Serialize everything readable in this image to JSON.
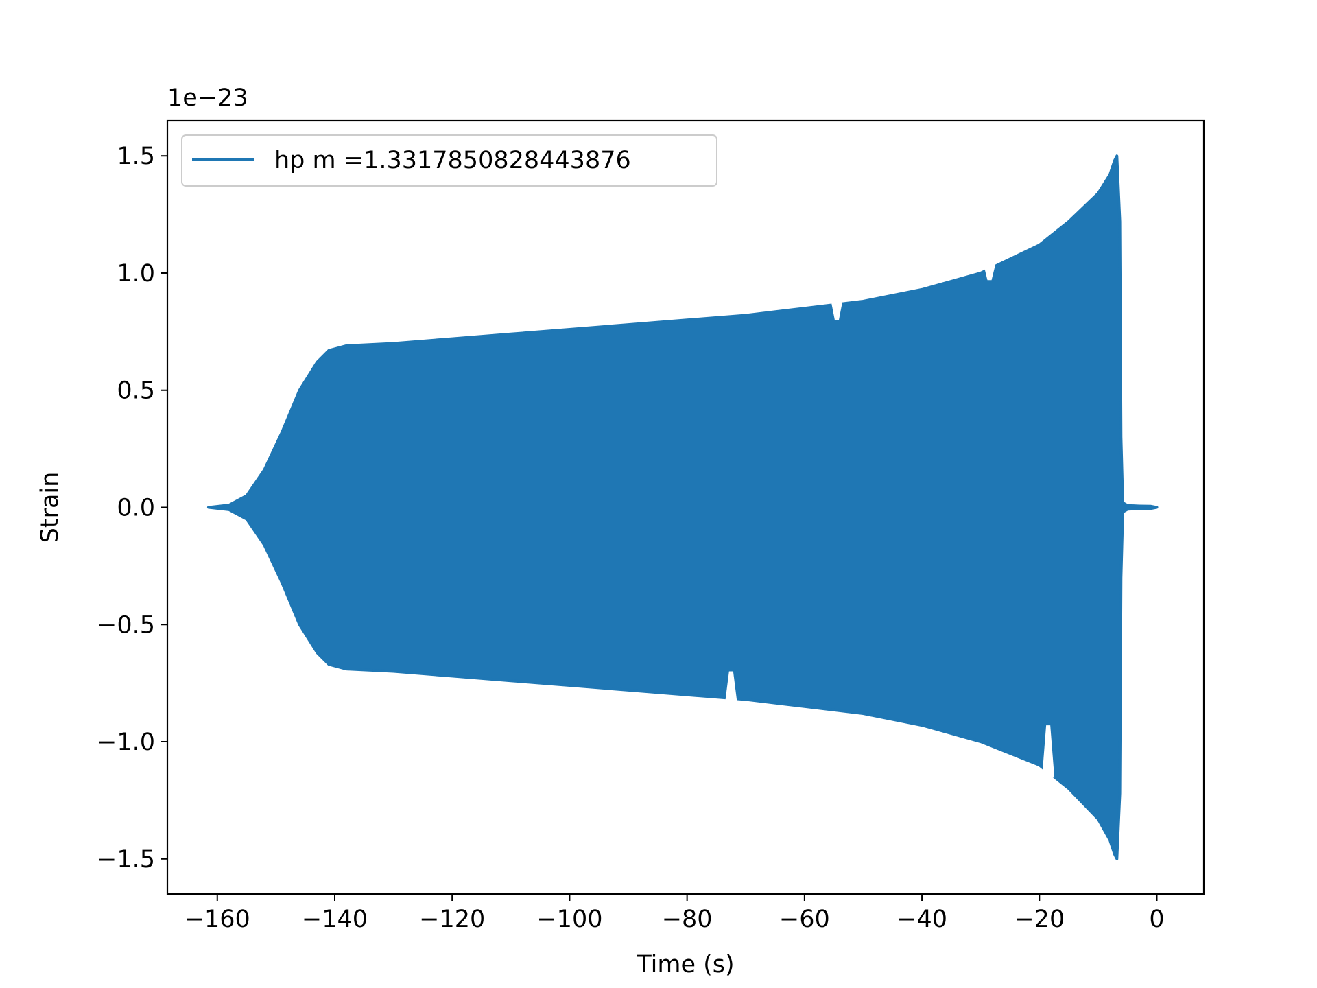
{
  "chart_data": {
    "type": "line",
    "xlabel": "Time (s)",
    "ylabel": "Strain",
    "offset_text": "1e−23",
    "xlim": [
      -168.5,
      8
    ],
    "ylim": [
      -1.65,
      1.65
    ],
    "x_ticks": [
      -160,
      -140,
      -120,
      -100,
      -80,
      -60,
      -40,
      -20,
      0
    ],
    "x_tick_labels": [
      "−160",
      "−140",
      "−120",
      "−100",
      "−80",
      "−60",
      "−40",
      "−20",
      "0"
    ],
    "y_ticks": [
      -1.5,
      -1.0,
      -0.5,
      0.0,
      0.5,
      1.0,
      1.5
    ],
    "y_tick_labels": [
      "−1.5",
      "−1.0",
      "−0.5",
      "0.0",
      "0.5",
      "1.0",
      "1.5"
    ],
    "grid": false,
    "legend_position": "upper-left",
    "series": [
      {
        "name": "hp m =1.3317850828443876",
        "color": "#1f77b4",
        "envelope": {
          "t": [
            -161.5,
            -158,
            -155,
            -152,
            -149,
            -146,
            -143,
            -141,
            -138,
            -130,
            -120,
            -110,
            -100,
            -90,
            -80,
            -70,
            -60,
            -50,
            -40,
            -30,
            -20,
            -15,
            -10,
            -8,
            -7.2,
            -6.8,
            -6.3,
            -6.1,
            -5.8,
            -5,
            -3,
            -1,
            0
          ],
          "upper": [
            0.0,
            0.01,
            0.05,
            0.16,
            0.32,
            0.5,
            0.62,
            0.67,
            0.69,
            0.7,
            0.72,
            0.74,
            0.76,
            0.78,
            0.8,
            0.82,
            0.85,
            0.88,
            0.93,
            1.0,
            1.12,
            1.22,
            1.34,
            1.42,
            1.48,
            1.5,
            1.22,
            0.3,
            0.02,
            0.008,
            0.006,
            0.005,
            0.0
          ],
          "lower": [
            0.0,
            -0.01,
            -0.05,
            -0.16,
            -0.32,
            -0.5,
            -0.62,
            -0.67,
            -0.69,
            -0.7,
            -0.72,
            -0.74,
            -0.76,
            -0.78,
            -0.8,
            -0.82,
            -0.85,
            -0.88,
            -0.93,
            -1.0,
            -1.1,
            -1.2,
            -1.33,
            -1.42,
            -1.48,
            -1.5,
            -1.22,
            -0.3,
            -0.02,
            -0.008,
            -0.006,
            -0.005,
            0.0
          ]
        },
        "dips": [
          {
            "t": -72.5,
            "side": "lower",
            "value": -0.7
          },
          {
            "t": -18.5,
            "side": "lower",
            "value": -0.93
          },
          {
            "t": -54.5,
            "side": "upper",
            "value": 0.8
          },
          {
            "t": -28.5,
            "side": "upper",
            "value": 0.97
          }
        ]
      }
    ]
  }
}
